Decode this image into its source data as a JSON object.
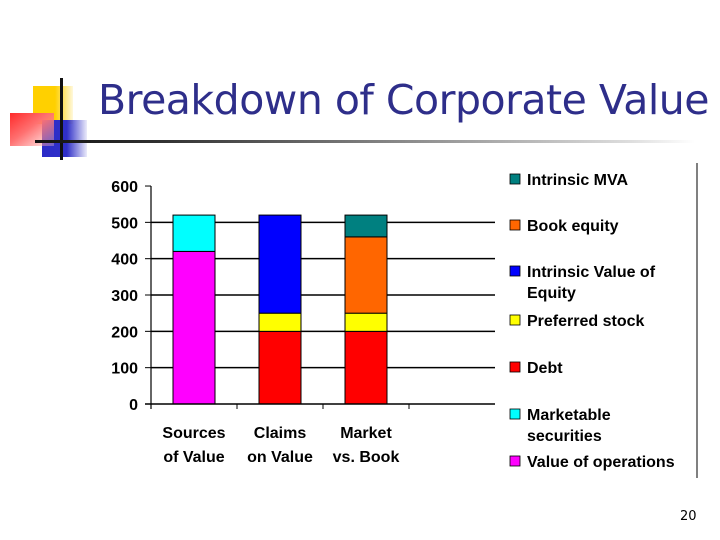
{
  "slide": {
    "title": "Breakdown of Corporate Value",
    "page_number": "20"
  },
  "colors": {
    "title": "#2e2e8a",
    "Intrinsic MVA": "#008080",
    "Book equity": "#ff6600",
    "Intrinsic Value of Equity": "#0000ff",
    "Preferred stock": "#ffff00",
    "Debt": "#ff0000",
    "Marketable securities": "#00ffff",
    "Value of operations": "#ff00ff"
  },
  "chart_data": {
    "type": "bar",
    "stacked": true,
    "title": "",
    "xlabel": "",
    "ylabel": "",
    "ylim": [
      0,
      600
    ],
    "yticks": [
      0,
      100,
      200,
      300,
      400,
      500,
      600
    ],
    "grid": true,
    "legend_position": "right",
    "categories": [
      "Sources of Value",
      "Claims on Value",
      "Market vs. Book"
    ],
    "category_lines": [
      [
        "Sources",
        "of Value"
      ],
      [
        "Claims",
        "on Value"
      ],
      [
        "Market",
        "vs. Book"
      ]
    ],
    "series": [
      {
        "name": "Value of operations",
        "color": "#ff00ff",
        "values": [
          420,
          0,
          0
        ]
      },
      {
        "name": "Marketable securities",
        "color": "#00ffff",
        "values": [
          100,
          0,
          0
        ]
      },
      {
        "name": "Debt",
        "color": "#ff0000",
        "values": [
          0,
          200,
          200
        ]
      },
      {
        "name": "Preferred stock",
        "color": "#ffff00",
        "values": [
          0,
          50,
          50
        ]
      },
      {
        "name": "Intrinsic Value of Equity",
        "color": "#0000ff",
        "values": [
          0,
          270,
          0
        ]
      },
      {
        "name": "Book equity",
        "color": "#ff6600",
        "values": [
          0,
          0,
          210
        ]
      },
      {
        "name": "Intrinsic MVA",
        "color": "#008080",
        "values": [
          0,
          0,
          60
        ]
      }
    ],
    "legend": [
      {
        "lines": [
          "Intrinsic MVA"
        ],
        "color": "#008080"
      },
      {
        "lines": [
          "Book equity"
        ],
        "color": "#ff6600"
      },
      {
        "lines": [
          "Intrinsic Value of",
          "Equity"
        ],
        "color": "#0000ff"
      },
      {
        "lines": [
          "Preferred stock"
        ],
        "color": "#ffff00"
      },
      {
        "lines": [
          "Debt"
        ],
        "color": "#ff0000"
      },
      {
        "lines": [
          "Marketable",
          "securities"
        ],
        "color": "#00ffff"
      },
      {
        "lines": [
          "Value of operations"
        ],
        "color": "#ff00ff"
      }
    ]
  }
}
